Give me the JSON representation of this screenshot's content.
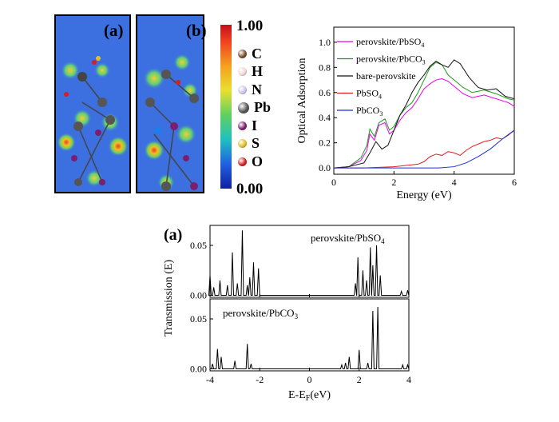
{
  "panels": {
    "density_a_label": "(a)",
    "density_b_label": "(b)",
    "colorbar": {
      "max_label": "1.00",
      "min_label": "0.00"
    },
    "atom_legend": [
      {
        "symbol": "C",
        "color": "#7a4a2a"
      },
      {
        "symbol": "H",
        "color": "#f2d6d6"
      },
      {
        "symbol": "N",
        "color": "#c9c9e8"
      },
      {
        "symbol": "Pb",
        "color": "#555555"
      },
      {
        "symbol": "I",
        "color": "#7a1f6e"
      },
      {
        "symbol": "S",
        "color": "#e0c020"
      },
      {
        "symbol": "O",
        "color": "#d42020"
      }
    ],
    "bottom_panel_label": "(a)"
  },
  "chart_data": [
    {
      "type": "line",
      "xlabel": "Energy (eV)",
      "ylabel": "Optical Adsorption",
      "xlim": [
        0,
        6
      ],
      "ylim": [
        -0.05,
        1.12
      ],
      "x_ticks": [
        "0",
        "2",
        "4",
        "6"
      ],
      "y_ticks": [
        "0.0",
        "0.2",
        "0.4",
        "0.6",
        "0.8",
        "1.0"
      ],
      "legend_position": "top-right",
      "series": [
        {
          "name_base": "perovskite/PbSO",
          "name_sub": "4",
          "color": "#ee00ee",
          "x": [
            0,
            0.5,
            0.9,
            1.1,
            1.2,
            1.35,
            1.5,
            1.7,
            1.85,
            2.0,
            2.2,
            2.4,
            2.6,
            2.8,
            3.0,
            3.2,
            3.4,
            3.6,
            3.8,
            4.0,
            4.3,
            4.6,
            5.0,
            5.4,
            5.8,
            6.0
          ],
          "y": [
            0.0,
            0.01,
            0.06,
            0.14,
            0.27,
            0.22,
            0.34,
            0.36,
            0.27,
            0.3,
            0.38,
            0.44,
            0.48,
            0.55,
            0.63,
            0.67,
            0.7,
            0.71,
            0.69,
            0.65,
            0.59,
            0.56,
            0.58,
            0.55,
            0.52,
            0.49
          ]
        },
        {
          "name_base": "perovskite/PbCO",
          "name_sub": "3",
          "color": "#1a9a1a",
          "x": [
            0,
            0.5,
            0.9,
            1.1,
            1.2,
            1.35,
            1.5,
            1.7,
            1.85,
            2.0,
            2.2,
            2.4,
            2.6,
            2.8,
            3.0,
            3.2,
            3.4,
            3.6,
            3.8,
            4.0,
            4.3,
            4.6,
            5.0,
            5.4,
            5.8,
            6.0
          ],
          "y": [
            0.0,
            0.01,
            0.08,
            0.18,
            0.31,
            0.25,
            0.36,
            0.39,
            0.3,
            0.33,
            0.42,
            0.48,
            0.52,
            0.6,
            0.7,
            0.8,
            0.84,
            0.82,
            0.74,
            0.7,
            0.64,
            0.6,
            0.62,
            0.59,
            0.55,
            0.54
          ]
        },
        {
          "name": "bare-perovskite",
          "color": "#111111",
          "x": [
            0,
            0.5,
            1.0,
            1.2,
            1.4,
            1.6,
            1.8,
            2.0,
            2.2,
            2.4,
            2.6,
            2.8,
            3.0,
            3.2,
            3.4,
            3.6,
            3.8,
            4.0,
            4.2,
            4.5,
            4.8,
            5.1,
            5.4,
            5.7,
            6.0
          ],
          "y": [
            0.0,
            0.01,
            0.04,
            0.12,
            0.21,
            0.15,
            0.18,
            0.3,
            0.42,
            0.5,
            0.6,
            0.68,
            0.74,
            0.81,
            0.85,
            0.82,
            0.8,
            0.86,
            0.83,
            0.72,
            0.64,
            0.62,
            0.63,
            0.57,
            0.55
          ]
        },
        {
          "name_base": "PbSO",
          "name_sub": "4",
          "color": "#e02020",
          "x": [
            0,
            1.0,
            2.0,
            2.4,
            2.8,
            3.0,
            3.2,
            3.4,
            3.6,
            3.8,
            4.0,
            4.2,
            4.4,
            4.6,
            4.8,
            5.0,
            5.2,
            5.4,
            5.6,
            5.8,
            6.0
          ],
          "y": [
            0.0,
            0.0,
            0.01,
            0.02,
            0.03,
            0.05,
            0.09,
            0.11,
            0.1,
            0.13,
            0.12,
            0.1,
            0.14,
            0.17,
            0.19,
            0.21,
            0.22,
            0.24,
            0.23,
            0.26,
            0.3
          ]
        },
        {
          "name_base": "PbCO",
          "name_sub": "3",
          "color": "#1a2ee0",
          "x": [
            0,
            2.0,
            3.0,
            3.5,
            4.0,
            4.4,
            4.8,
            5.2,
            5.6,
            6.0
          ],
          "y": [
            0.0,
            0.0,
            0.0,
            0.0,
            0.01,
            0.04,
            0.09,
            0.15,
            0.23,
            0.3
          ]
        }
      ]
    },
    {
      "type": "line",
      "ylabel": "Transmission (E)",
      "xlabel_base": "E-E",
      "xlabel_sub": "F",
      "xlabel_tail": "(eV)",
      "xlim": [
        -4,
        4
      ],
      "x_ticks": [
        "-4",
        "-2",
        "0",
        "2",
        "4"
      ],
      "subplots": [
        {
          "label_base": "perovskite/PbSO",
          "label_sub": "4",
          "y_ticks": [
            "0.00",
            "0.05"
          ],
          "ylim": [
            -0.002,
            0.07
          ],
          "peaks": [
            [
              -4.0,
              0.02
            ],
            [
              -3.85,
              0.008
            ],
            [
              -3.6,
              0.015
            ],
            [
              -3.3,
              0.01
            ],
            [
              -3.1,
              0.043
            ],
            [
              -2.9,
              0.012
            ],
            [
              -2.7,
              0.065
            ],
            [
              -2.5,
              0.01
            ],
            [
              -2.4,
              0.018
            ],
            [
              -2.25,
              0.033
            ],
            [
              -2.05,
              0.027
            ],
            [
              1.85,
              0.012
            ],
            [
              1.95,
              0.038
            ],
            [
              2.15,
              0.025
            ],
            [
              2.3,
              0.015
            ],
            [
              2.45,
              0.048
            ],
            [
              2.55,
              0.03
            ],
            [
              2.7,
              0.05
            ],
            [
              2.85,
              0.02
            ],
            [
              3.7,
              0.004
            ],
            [
              3.95,
              0.005
            ]
          ]
        },
        {
          "label_base": "perovskite/PbCO",
          "label_sub": "3",
          "y_ticks": [
            "0.00",
            "0.05"
          ],
          "ylim": [
            -0.002,
            0.07
          ],
          "peaks": [
            [
              -3.9,
              0.005
            ],
            [
              -3.7,
              0.02
            ],
            [
              -3.55,
              0.012
            ],
            [
              -3.0,
              0.008
            ],
            [
              -2.5,
              0.025
            ],
            [
              -2.35,
              0.005
            ],
            [
              1.3,
              0.004
            ],
            [
              1.45,
              0.006
            ],
            [
              1.6,
              0.012
            ],
            [
              2.0,
              0.019
            ],
            [
              2.35,
              0.006
            ],
            [
              2.55,
              0.058
            ],
            [
              2.75,
              0.062
            ],
            [
              3.75,
              0.004
            ],
            [
              3.95,
              0.004
            ]
          ]
        }
      ]
    }
  ]
}
